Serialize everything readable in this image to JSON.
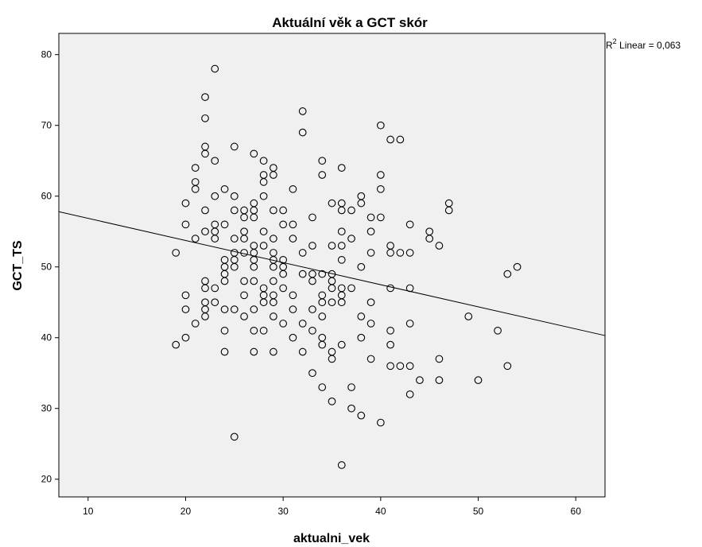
{
  "chart_data": {
    "type": "scatter",
    "title": "Aktuální věk a GCT skór",
    "xlabel": "aktualni_vek",
    "ylabel": "GCT_TS",
    "xlim": [
      7,
      63
    ],
    "ylim": [
      17.5,
      83
    ],
    "xticks": [
      10,
      20,
      30,
      40,
      50,
      60
    ],
    "yticks": [
      20,
      30,
      40,
      50,
      60,
      70,
      80
    ],
    "grid": false,
    "legend": "none",
    "plot_background": "#f0f0f0",
    "marker": {
      "shape": "open-circle",
      "color": "#000000"
    },
    "fit_line": {
      "type": "linear",
      "label_prefix": "R",
      "label_superscript": "2",
      "label_suffix": " Linear = 0,063",
      "x_start": 7,
      "y_start": 57.8,
      "x_end": 63,
      "y_end": 40.3
    },
    "points": [
      [
        19,
        52
      ],
      [
        19,
        39
      ],
      [
        20,
        59
      ],
      [
        20,
        56
      ],
      [
        20,
        46
      ],
      [
        20,
        44
      ],
      [
        20,
        40
      ],
      [
        21,
        64
      ],
      [
        21,
        62
      ],
      [
        21,
        61
      ],
      [
        21,
        54
      ],
      [
        21,
        42
      ],
      [
        22,
        74
      ],
      [
        22,
        71
      ],
      [
        22,
        67
      ],
      [
        22,
        66
      ],
      [
        22,
        58
      ],
      [
        22,
        55
      ],
      [
        22,
        48
      ],
      [
        22,
        47
      ],
      [
        22,
        45
      ],
      [
        22,
        44
      ],
      [
        22,
        43
      ],
      [
        23,
        78
      ],
      [
        23,
        65
      ],
      [
        23,
        60
      ],
      [
        23,
        56
      ],
      [
        23,
        55
      ],
      [
        23,
        54
      ],
      [
        23,
        47
      ],
      [
        23,
        45
      ],
      [
        24,
        61
      ],
      [
        24,
        56
      ],
      [
        24,
        51
      ],
      [
        24,
        50
      ],
      [
        24,
        49
      ],
      [
        24,
        48
      ],
      [
        24,
        44
      ],
      [
        24,
        41
      ],
      [
        24,
        38
      ],
      [
        25,
        67
      ],
      [
        25,
        60
      ],
      [
        25,
        58
      ],
      [
        25,
        54
      ],
      [
        25,
        52
      ],
      [
        25,
        51
      ],
      [
        25,
        50
      ],
      [
        25,
        44
      ],
      [
        25,
        26
      ],
      [
        26,
        58
      ],
      [
        26,
        57
      ],
      [
        26,
        55
      ],
      [
        26,
        54
      ],
      [
        26,
        52
      ],
      [
        26,
        48
      ],
      [
        26,
        46
      ],
      [
        26,
        43
      ],
      [
        27,
        66
      ],
      [
        27,
        59
      ],
      [
        27,
        58
      ],
      [
        27,
        57
      ],
      [
        27,
        53
      ],
      [
        27,
        52
      ],
      [
        27,
        51
      ],
      [
        27,
        50
      ],
      [
        27,
        48
      ],
      [
        27,
        44
      ],
      [
        27,
        41
      ],
      [
        27,
        38
      ],
      [
        28,
        65
      ],
      [
        28,
        63
      ],
      [
        28,
        62
      ],
      [
        28,
        60
      ],
      [
        28,
        55
      ],
      [
        28,
        53
      ],
      [
        28,
        47
      ],
      [
        28,
        46
      ],
      [
        28,
        45
      ],
      [
        28,
        41
      ],
      [
        29,
        64
      ],
      [
        29,
        63
      ],
      [
        29,
        58
      ],
      [
        29,
        54
      ],
      [
        29,
        52
      ],
      [
        29,
        51
      ],
      [
        29,
        50
      ],
      [
        29,
        48
      ],
      [
        29,
        46
      ],
      [
        29,
        45
      ],
      [
        29,
        43
      ],
      [
        29,
        38
      ],
      [
        30,
        58
      ],
      [
        30,
        56
      ],
      [
        30,
        51
      ],
      [
        30,
        50
      ],
      [
        30,
        49
      ],
      [
        30,
        47
      ],
      [
        30,
        42
      ],
      [
        31,
        61
      ],
      [
        31,
        56
      ],
      [
        31,
        54
      ],
      [
        31,
        46
      ],
      [
        31,
        44
      ],
      [
        31,
        40
      ],
      [
        32,
        72
      ],
      [
        32,
        69
      ],
      [
        32,
        52
      ],
      [
        32,
        49
      ],
      [
        32,
        42
      ],
      [
        32,
        38
      ],
      [
        33,
        57
      ],
      [
        33,
        53
      ],
      [
        33,
        49
      ],
      [
        33,
        48
      ],
      [
        33,
        44
      ],
      [
        33,
        41
      ],
      [
        33,
        35
      ],
      [
        34,
        65
      ],
      [
        34,
        63
      ],
      [
        34,
        49
      ],
      [
        34,
        46
      ],
      [
        34,
        45
      ],
      [
        34,
        43
      ],
      [
        34,
        40
      ],
      [
        34,
        39
      ],
      [
        34,
        33
      ],
      [
        35,
        59
      ],
      [
        35,
        53
      ],
      [
        35,
        49
      ],
      [
        35,
        48
      ],
      [
        35,
        47
      ],
      [
        35,
        45
      ],
      [
        35,
        38
      ],
      [
        35,
        37
      ],
      [
        35,
        31
      ],
      [
        36,
        64
      ],
      [
        36,
        59
      ],
      [
        36,
        58
      ],
      [
        36,
        55
      ],
      [
        36,
        53
      ],
      [
        36,
        51
      ],
      [
        36,
        47
      ],
      [
        36,
        46
      ],
      [
        36,
        45
      ],
      [
        36,
        39
      ],
      [
        36,
        22
      ],
      [
        37,
        58
      ],
      [
        37,
        54
      ],
      [
        37,
        47
      ],
      [
        37,
        33
      ],
      [
        37,
        30
      ],
      [
        38,
        60
      ],
      [
        38,
        59
      ],
      [
        38,
        50
      ],
      [
        38,
        43
      ],
      [
        38,
        40
      ],
      [
        38,
        29
      ],
      [
        39,
        57
      ],
      [
        39,
        55
      ],
      [
        39,
        52
      ],
      [
        39,
        45
      ],
      [
        39,
        42
      ],
      [
        39,
        37
      ],
      [
        40,
        70
      ],
      [
        40,
        63
      ],
      [
        40,
        61
      ],
      [
        40,
        57
      ],
      [
        40,
        28
      ],
      [
        41,
        68
      ],
      [
        41,
        53
      ],
      [
        41,
        52
      ],
      [
        41,
        47
      ],
      [
        41,
        41
      ],
      [
        41,
        39
      ],
      [
        41,
        36
      ],
      [
        42,
        68
      ],
      [
        42,
        52
      ],
      [
        42,
        36
      ],
      [
        43,
        56
      ],
      [
        43,
        52
      ],
      [
        43,
        47
      ],
      [
        43,
        42
      ],
      [
        43,
        36
      ],
      [
        43,
        32
      ],
      [
        44,
        34
      ],
      [
        45,
        55
      ],
      [
        45,
        54
      ],
      [
        46,
        53
      ],
      [
        46,
        37
      ],
      [
        46,
        34
      ],
      [
        47,
        59
      ],
      [
        47,
        58
      ],
      [
        49,
        43
      ],
      [
        50,
        34
      ],
      [
        52,
        41
      ],
      [
        53,
        49
      ],
      [
        53,
        36
      ],
      [
        54,
        50
      ]
    ]
  }
}
